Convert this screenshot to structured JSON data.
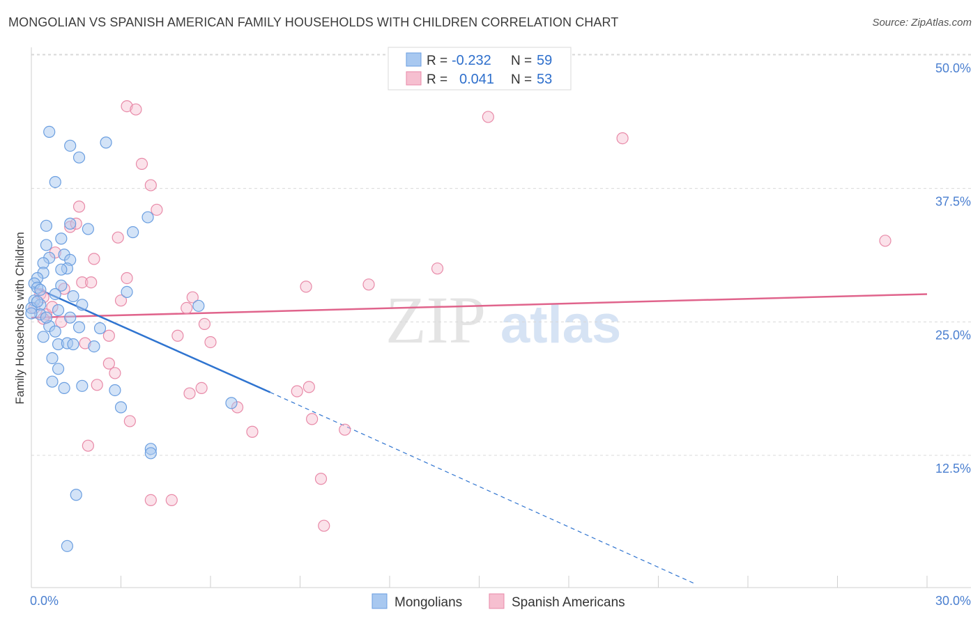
{
  "title": "MONGOLIAN VS SPANISH AMERICAN FAMILY HOUSEHOLDS WITH CHILDREN CORRELATION CHART",
  "source": "Source: ZipAtlas.com",
  "watermark": {
    "zip": "ZIP",
    "atlas": "atlas"
  },
  "colors": {
    "blue_fill": "#a8c8f0",
    "blue_stroke": "#6a9ee0",
    "blue_line": "#2f74d0",
    "pink_fill": "#f6bfd0",
    "pink_stroke": "#e88aa8",
    "pink_line": "#e0648c",
    "grid": "#d8d8d8",
    "axis_text": "#4a7fd0"
  },
  "legend": {
    "rows": [
      {
        "r_label": "R =",
        "r_value": "-0.232",
        "n_label": "N =",
        "n_value": "59",
        "series": "blue"
      },
      {
        "r_label": "R =",
        "r_value": "0.041",
        "n_label": "N =",
        "n_value": "53",
        "series": "pink"
      }
    ]
  },
  "bottom_legend": [
    "Mongolians",
    "Spanish Americans"
  ],
  "chart_data": {
    "type": "scatter",
    "title": "MONGOLIAN VS SPANISH AMERICAN FAMILY HOUSEHOLDS WITH CHILDREN CORRELATION CHART",
    "xlabel": "",
    "ylabel": "Family Households with Children",
    "xlim": [
      0,
      30
    ],
    "ylim": [
      0,
      52
    ],
    "x_tick_labels": {
      "min": "0.0%",
      "max": "30.0%"
    },
    "y_ticks": [
      {
        "value": 12.5,
        "label": "12.5%"
      },
      {
        "value": 25.0,
        "label": "25.0%"
      },
      {
        "value": 37.5,
        "label": "37.5%"
      },
      {
        "value": 50.0,
        "label": "50.0%"
      }
    ],
    "series": [
      {
        "name": "Mongolians",
        "color": "blue",
        "R": -0.232,
        "N": 59,
        "trend": {
          "x0": 0.05,
          "y0": 28.3,
          "x1": 8.0,
          "y1": 18.4,
          "dash_x_end": 22.2,
          "dash_y_end": 0.5
        },
        "points": [
          [
            0.6,
            42.8
          ],
          [
            1.3,
            41.5
          ],
          [
            1.6,
            40.4
          ],
          [
            2.5,
            41.8
          ],
          [
            0.8,
            38.1
          ],
          [
            0.5,
            34.0
          ],
          [
            1.3,
            34.2
          ],
          [
            1.9,
            33.7
          ],
          [
            3.4,
            33.4
          ],
          [
            3.9,
            34.8
          ],
          [
            0.5,
            32.2
          ],
          [
            1.0,
            32.8
          ],
          [
            1.1,
            31.3
          ],
          [
            1.3,
            30.8
          ],
          [
            0.6,
            31.0
          ],
          [
            1.2,
            30.0
          ],
          [
            1.0,
            29.9
          ],
          [
            0.4,
            30.5
          ],
          [
            0.4,
            29.6
          ],
          [
            0.2,
            29.1
          ],
          [
            0.1,
            28.6
          ],
          [
            0.2,
            28.2
          ],
          [
            0.3,
            28.0
          ],
          [
            1.0,
            28.4
          ],
          [
            0.8,
            27.6
          ],
          [
            1.4,
            27.4
          ],
          [
            3.2,
            27.8
          ],
          [
            0.1,
            27.0
          ],
          [
            0.3,
            26.6
          ],
          [
            1.7,
            26.6
          ],
          [
            5.6,
            26.5
          ],
          [
            0.0,
            26.3
          ],
          [
            0.9,
            26.1
          ],
          [
            0.3,
            25.7
          ],
          [
            1.3,
            25.4
          ],
          [
            0.6,
            24.6
          ],
          [
            1.6,
            24.5
          ],
          [
            2.3,
            24.4
          ],
          [
            0.8,
            24.1
          ],
          [
            0.4,
            23.6
          ],
          [
            0.9,
            22.9
          ],
          [
            1.2,
            23.0
          ],
          [
            1.4,
            22.9
          ],
          [
            2.1,
            22.7
          ],
          [
            0.7,
            21.6
          ],
          [
            0.9,
            20.6
          ],
          [
            0.7,
            19.4
          ],
          [
            1.1,
            18.8
          ],
          [
            1.7,
            19.0
          ],
          [
            2.8,
            18.6
          ],
          [
            3.0,
            17.0
          ],
          [
            6.7,
            17.4
          ],
          [
            4.0,
            13.1
          ],
          [
            4.0,
            12.7
          ],
          [
            1.5,
            8.8
          ],
          [
            1.2,
            4.0
          ],
          [
            0.0,
            25.8
          ],
          [
            0.2,
            26.9
          ],
          [
            0.5,
            25.4
          ]
        ]
      },
      {
        "name": "Spanish Americans",
        "color": "pink",
        "R": 0.041,
        "N": 53,
        "trend": {
          "x0": 0.0,
          "y0": 25.4,
          "x1": 30.0,
          "y1": 27.6
        },
        "points": [
          [
            3.2,
            45.2
          ],
          [
            3.5,
            44.9
          ],
          [
            15.3,
            44.2
          ],
          [
            19.8,
            42.2
          ],
          [
            3.7,
            39.8
          ],
          [
            4.0,
            37.8
          ],
          [
            1.6,
            35.8
          ],
          [
            4.2,
            35.5
          ],
          [
            1.3,
            33.9
          ],
          [
            1.5,
            34.2
          ],
          [
            2.9,
            32.9
          ],
          [
            28.6,
            32.6
          ],
          [
            0.8,
            31.5
          ],
          [
            2.1,
            30.9
          ],
          [
            13.6,
            30.0
          ],
          [
            3.2,
            29.1
          ],
          [
            1.7,
            28.7
          ],
          [
            2.0,
            28.7
          ],
          [
            11.3,
            28.5
          ],
          [
            9.2,
            28.3
          ],
          [
            1.1,
            28.1
          ],
          [
            0.3,
            27.6
          ],
          [
            0.4,
            27.3
          ],
          [
            5.4,
            27.3
          ],
          [
            3.0,
            27.0
          ],
          [
            0.1,
            26.3
          ],
          [
            5.2,
            26.3
          ],
          [
            0.5,
            25.7
          ],
          [
            1.0,
            25.0
          ],
          [
            5.8,
            24.8
          ],
          [
            0.4,
            25.3
          ],
          [
            4.9,
            23.7
          ],
          [
            2.6,
            23.7
          ],
          [
            1.8,
            23.0
          ],
          [
            6.0,
            23.1
          ],
          [
            2.6,
            21.1
          ],
          [
            2.8,
            20.2
          ],
          [
            2.2,
            19.1
          ],
          [
            5.7,
            18.8
          ],
          [
            9.3,
            18.9
          ],
          [
            8.9,
            18.5
          ],
          [
            5.3,
            18.3
          ],
          [
            6.9,
            17.0
          ],
          [
            9.4,
            15.9
          ],
          [
            3.3,
            15.7
          ],
          [
            10.5,
            14.9
          ],
          [
            7.4,
            14.7
          ],
          [
            1.9,
            13.4
          ],
          [
            9.7,
            10.3
          ],
          [
            4.0,
            8.3
          ],
          [
            4.7,
            8.3
          ],
          [
            9.8,
            5.9
          ],
          [
            0.7,
            26.4
          ]
        ]
      }
    ]
  }
}
